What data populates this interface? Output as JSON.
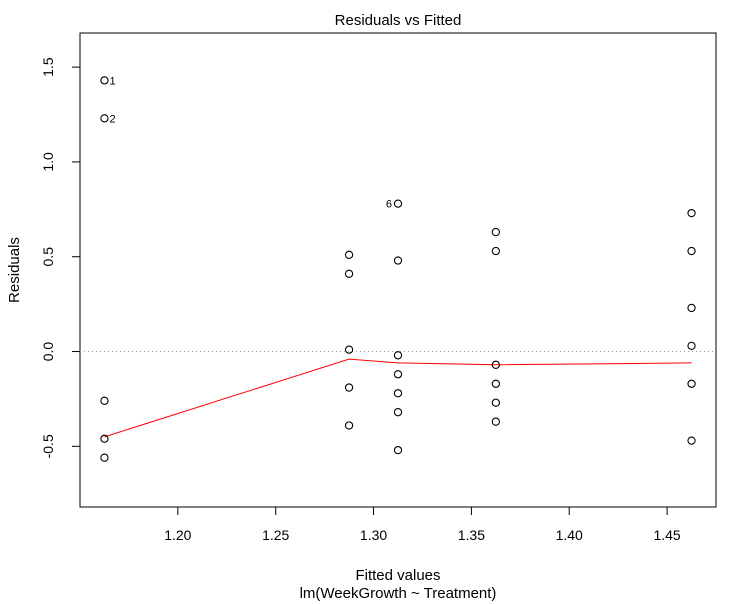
{
  "chart_data": {
    "type": "scatter",
    "title": "Residuals vs Fitted",
    "xlabel": "Fitted values",
    "subtitle": "lm(WeekGrowth ~ Treatment)",
    "ylabel": "Residuals",
    "xlim": [
      1.15,
      1.475
    ],
    "ylim": [
      -0.82,
      1.68
    ],
    "xticks": [
      1.2,
      1.25,
      1.3,
      1.35,
      1.4,
      1.45
    ],
    "xtick_labels": [
      "1.20",
      "1.25",
      "1.30",
      "1.35",
      "1.40",
      "1.45"
    ],
    "yticks": [
      -0.5,
      0.0,
      0.5,
      1.0,
      1.5
    ],
    "ytick_labels": [
      "-0.5",
      "0.0",
      "0.5",
      "1.0",
      "1.5"
    ],
    "points": [
      {
        "x": 1.1625,
        "y": 1.43,
        "label": "1"
      },
      {
        "x": 1.1625,
        "y": 1.23,
        "label": "2"
      },
      {
        "x": 1.1625,
        "y": -0.26
      },
      {
        "x": 1.1625,
        "y": -0.46
      },
      {
        "x": 1.1625,
        "y": -0.56
      },
      {
        "x": 1.2875,
        "y": 0.51
      },
      {
        "x": 1.2875,
        "y": 0.41
      },
      {
        "x": 1.2875,
        "y": 0.01
      },
      {
        "x": 1.2875,
        "y": -0.19
      },
      {
        "x": 1.2875,
        "y": -0.39
      },
      {
        "x": 1.3125,
        "y": 0.78,
        "label": "6"
      },
      {
        "x": 1.3125,
        "y": 0.48
      },
      {
        "x": 1.3125,
        "y": -0.02
      },
      {
        "x": 1.3125,
        "y": -0.12
      },
      {
        "x": 1.3125,
        "y": -0.22
      },
      {
        "x": 1.3125,
        "y": -0.32
      },
      {
        "x": 1.3125,
        "y": -0.52
      },
      {
        "x": 1.3625,
        "y": 0.63
      },
      {
        "x": 1.3625,
        "y": 0.53
      },
      {
        "x": 1.3625,
        "y": -0.07
      },
      {
        "x": 1.3625,
        "y": -0.17
      },
      {
        "x": 1.3625,
        "y": -0.27
      },
      {
        "x": 1.3625,
        "y": -0.37
      },
      {
        "x": 1.4625,
        "y": 0.73
      },
      {
        "x": 1.4625,
        "y": 0.53
      },
      {
        "x": 1.4625,
        "y": 0.23
      },
      {
        "x": 1.4625,
        "y": 0.03
      },
      {
        "x": 1.4625,
        "y": -0.17
      },
      {
        "x": 1.4625,
        "y": -0.47
      }
    ],
    "smooth_line": {
      "color": "#ff0000",
      "x": [
        1.1625,
        1.2875,
        1.3125,
        1.3625,
        1.4625
      ],
      "y": [
        -0.45,
        -0.04,
        -0.06,
        -0.07,
        -0.06
      ]
    },
    "reference_line": {
      "y": 0.0,
      "style": "dotted",
      "color": "#999999"
    },
    "grid": false
  }
}
